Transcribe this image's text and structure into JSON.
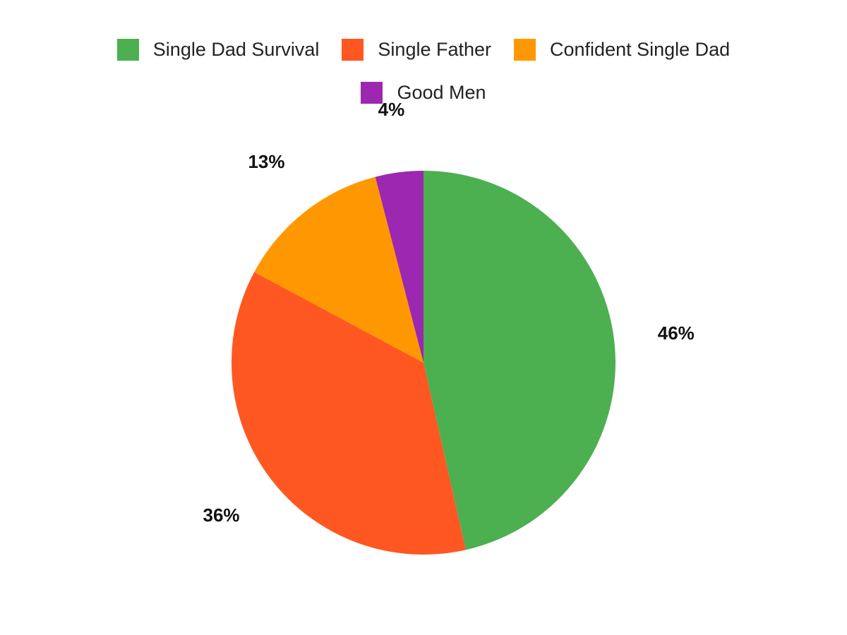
{
  "chart_data": {
    "type": "pie",
    "title": "",
    "legend_placement": "top",
    "start_angle": "top, clockwise",
    "slices": [
      {
        "name": "Single Dad Survival",
        "value": 46,
        "label": "46%",
        "color": "#4CAF50"
      },
      {
        "name": "Single Father",
        "value": 36,
        "label": "36%",
        "color": "#FF5722"
      },
      {
        "name": "Confident Single Dad",
        "value": 13,
        "label": "13%",
        "color": "#FF9800"
      },
      {
        "name": "Good Men",
        "value": 4,
        "label": "4%",
        "color": "#9C27B0"
      }
    ]
  }
}
